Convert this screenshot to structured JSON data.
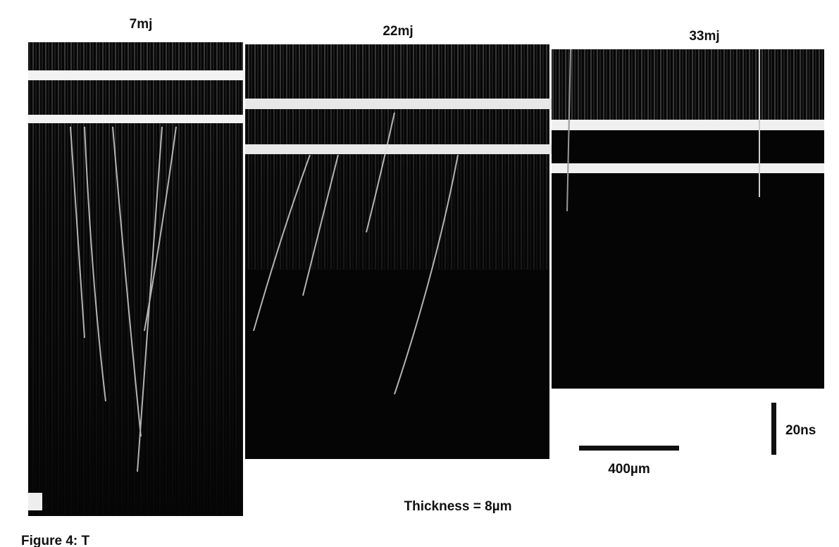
{
  "figure": {
    "panels": [
      {
        "label": "7mj"
      },
      {
        "label": "22mj"
      },
      {
        "label": "33mj"
      }
    ],
    "scale_bars": {
      "time": "20ns",
      "length": "400µm"
    },
    "note": "Thickness = 8µm",
    "caption": "Figure 4: T"
  }
}
